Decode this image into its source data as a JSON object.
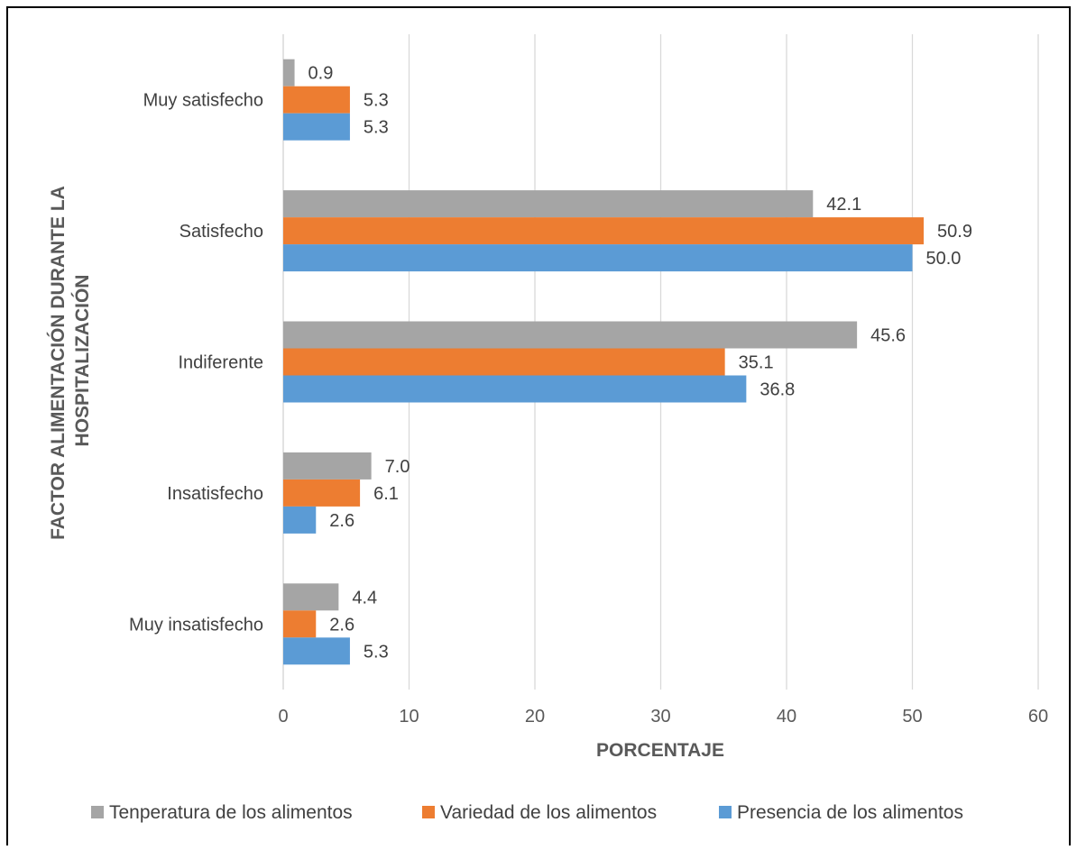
{
  "chart_data": {
    "type": "bar",
    "orientation": "horizontal",
    "categories": [
      "Muy satisfecho",
      "Satisfecho",
      "Indiferente",
      "Insatisfecho",
      "Muy insatisfecho"
    ],
    "series": [
      {
        "name": "Tenperatura de los alimentos",
        "color": "#a5a5a5",
        "values": [
          0.9,
          42.1,
          45.6,
          7.0,
          4.4
        ]
      },
      {
        "name": "Variedad de los alimentos",
        "color": "#ed7d31",
        "values": [
          5.3,
          50.9,
          35.1,
          6.1,
          2.6
        ]
      },
      {
        "name": "Presencia de los alimentos",
        "color": "#5b9bd5",
        "values": [
          5.3,
          50.0,
          36.8,
          2.6,
          5.3
        ]
      }
    ],
    "value_labels": [
      [
        "0.9",
        "42.1",
        "45.6",
        "7.0",
        "4.4"
      ],
      [
        "5.3",
        "50.9",
        "35.1",
        "6.1",
        "2.6"
      ],
      [
        "5.3",
        "50.0",
        "36.8",
        "2.6",
        "5.3"
      ]
    ],
    "xlabel": "PORCENTAJE",
    "ylabel_lines": [
      "FACTOR ALIMENTACIÓN DURANTE LA",
      "HOSPITALIZACIÓN"
    ],
    "xlim": [
      0,
      60
    ],
    "xticks": [
      0,
      10,
      20,
      30,
      40,
      50,
      60
    ],
    "grid": true,
    "legend_position": "bottom"
  }
}
